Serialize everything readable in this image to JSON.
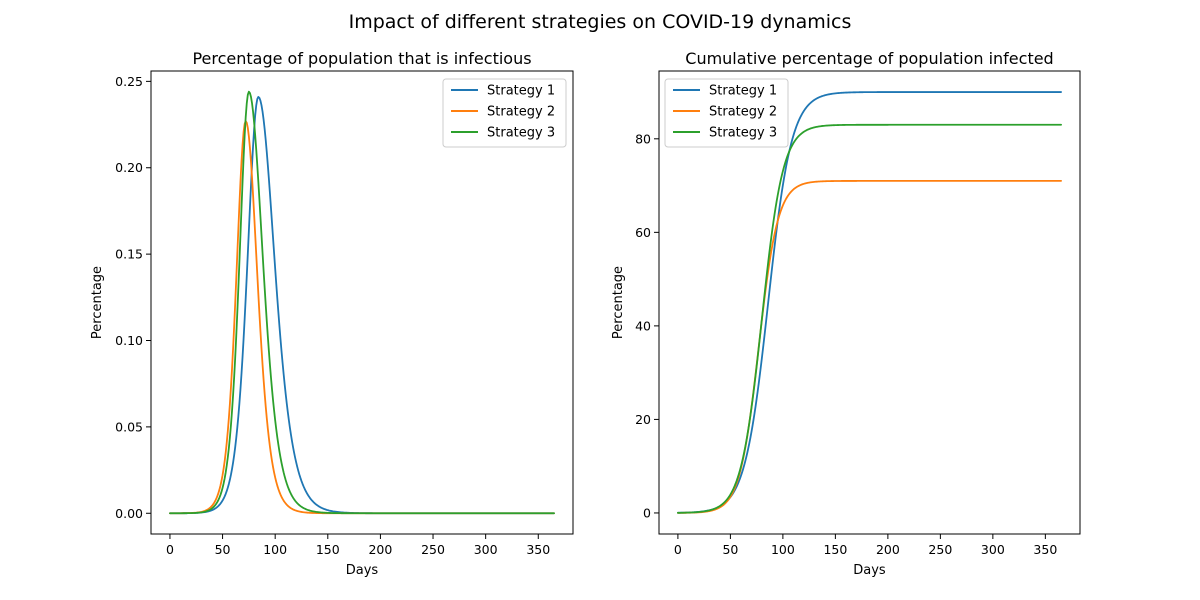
{
  "title": "Impact of different strategies on COVID-19 dynamics",
  "colors": {
    "Strategy 1": "#1f77b4",
    "Strategy 2": "#ff7f0e",
    "Strategy 3": "#2ca02c"
  },
  "chart_data": [
    {
      "type": "line",
      "title": "Percentage of population that is infectious",
      "xlabel": "Days",
      "ylabel": "Percentage",
      "xlim": [
        -18,
        383
      ],
      "ylim": [
        -0.012,
        0.256
      ],
      "xticks": [
        0,
        50,
        100,
        150,
        200,
        250,
        300,
        350
      ],
      "yticks": [
        0.0,
        0.05,
        0.1,
        0.15,
        0.2,
        0.25
      ],
      "ytick_labels": [
        "0.00",
        "0.05",
        "0.10",
        "0.15",
        "0.20",
        "0.25"
      ],
      "grid": false,
      "legend": "upper right",
      "series": [
        {
          "name": "Strategy 1",
          "curve": "peak",
          "peak": 0.241,
          "peak_day": 84,
          "rise_width": 14,
          "fall_width": 21
        },
        {
          "name": "Strategy 2",
          "curve": "peak",
          "peak": 0.227,
          "peak_day": 72,
          "rise_width": 12,
          "fall_width": 15
        },
        {
          "name": "Strategy 3",
          "curve": "peak",
          "peak": 0.244,
          "peak_day": 75,
          "rise_width": 12,
          "fall_width": 18
        }
      ],
      "x_start": 0,
      "x_end": 365
    },
    {
      "type": "line",
      "title": "Cumulative percentage of population infected",
      "xlabel": "Days",
      "ylabel": "Percentage",
      "xlim": [
        -18,
        383
      ],
      "ylim": [
        -4.5,
        94.5
      ],
      "xticks": [
        0,
        50,
        100,
        150,
        200,
        250,
        300,
        350
      ],
      "yticks": [
        0,
        20,
        40,
        60,
        80
      ],
      "ytick_labels": [
        "0",
        "20",
        "40",
        "60",
        "80"
      ],
      "grid": false,
      "legend": "upper left",
      "series": [
        {
          "name": "Strategy 1",
          "curve": "sigmoid",
          "plateau": 90,
          "midpoint": 86,
          "steepness": 0.09
        },
        {
          "name": "Strategy 2",
          "curve": "sigmoid",
          "plateau": 71,
          "midpoint": 77,
          "steepness": 0.11
        },
        {
          "name": "Strategy 3",
          "curve": "sigmoid",
          "plateau": 83,
          "midpoint": 80,
          "steepness": 0.1
        }
      ],
      "x_start": 0,
      "x_end": 365
    }
  ]
}
